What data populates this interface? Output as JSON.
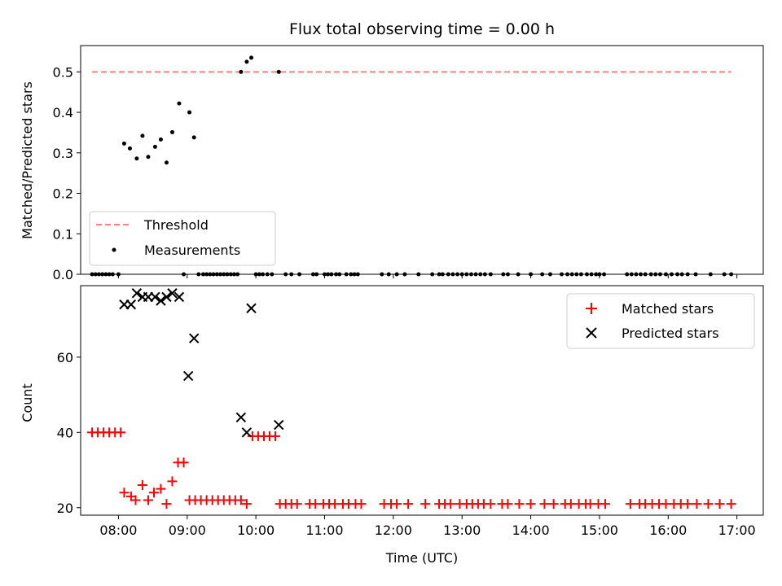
{
  "chart_data": [
    {
      "type": "scatter",
      "title": "Flux total observing time = 0.00 h",
      "xlabel": "",
      "ylabel": "Matched/Predicted stars",
      "xlim": [
        "07:27",
        "17:23"
      ],
      "ylim": [
        0,
        0.565
      ],
      "yticks": [
        0.0,
        0.1,
        0.2,
        0.3,
        0.4,
        0.5
      ],
      "grid": false,
      "legend": "lower-left",
      "threshold": {
        "name": "Threshold",
        "value": 0.5,
        "x": [
          "07:37",
          "16:55"
        ],
        "color": "#ff7f7f"
      },
      "series": [
        {
          "name": "Measurements",
          "color": "#000000",
          "points": [
            [
              "07:37",
              0
            ],
            [
              "07:40",
              0
            ],
            [
              "07:43",
              0
            ],
            [
              "07:46",
              0
            ],
            [
              "07:49",
              0
            ],
            [
              "07:52",
              0
            ],
            [
              "07:55",
              0
            ],
            [
              "08:00",
              0
            ],
            [
              "08:05",
              0.323
            ],
            [
              "08:10",
              0.311
            ],
            [
              "08:16",
              0.286
            ],
            [
              "08:21",
              0.342
            ],
            [
              "08:26",
              0.29
            ],
            [
              "08:32",
              0.315
            ],
            [
              "08:37",
              0.333
            ],
            [
              "08:42",
              0.276
            ],
            [
              "08:47",
              0.351
            ],
            [
              "08:53",
              0.422
            ],
            [
              "08:57",
              0
            ],
            [
              "09:02",
              0.4
            ],
            [
              "09:06",
              0.338
            ],
            [
              "09:10",
              0
            ],
            [
              "09:14",
              0
            ],
            [
              "09:17",
              0
            ],
            [
              "09:20",
              0
            ],
            [
              "09:23",
              0
            ],
            [
              "09:26",
              0
            ],
            [
              "09:29",
              0
            ],
            [
              "09:32",
              0
            ],
            [
              "09:35",
              0
            ],
            [
              "09:38",
              0
            ],
            [
              "09:41",
              0
            ],
            [
              "09:44",
              0
            ],
            [
              "09:47",
              0.5
            ],
            [
              "09:52",
              0.525
            ],
            [
              "09:56",
              0.535
            ],
            [
              "10:00",
              0
            ],
            [
              "10:03",
              0
            ],
            [
              "10:06",
              0
            ],
            [
              "10:10",
              0
            ],
            [
              "10:14",
              0
            ],
            [
              "10:20",
              0.5
            ],
            [
              "10:26",
              0
            ],
            [
              "10:31",
              0
            ],
            [
              "10:38",
              0
            ],
            [
              "10:50",
              0
            ],
            [
              "10:53",
              0
            ],
            [
              "11:00",
              0
            ],
            [
              "11:03",
              0
            ],
            [
              "11:06",
              0
            ],
            [
              "11:10",
              0
            ],
            [
              "11:13",
              0
            ],
            [
              "11:19",
              0
            ],
            [
              "11:23",
              0
            ],
            [
              "11:26",
              0
            ],
            [
              "11:29",
              0
            ],
            [
              "11:50",
              0
            ],
            [
              "11:56",
              0
            ],
            [
              "12:03",
              0
            ],
            [
              "12:10",
              0
            ],
            [
              "12:22",
              0
            ],
            [
              "12:34",
              0
            ],
            [
              "12:40",
              0
            ],
            [
              "12:43",
              0
            ],
            [
              "12:48",
              0
            ],
            [
              "12:52",
              0
            ],
            [
              "12:56",
              0
            ],
            [
              "13:00",
              0
            ],
            [
              "13:04",
              0
            ],
            [
              "13:08",
              0
            ],
            [
              "13:12",
              0
            ],
            [
              "13:16",
              0
            ],
            [
              "13:20",
              0
            ],
            [
              "13:25",
              0
            ],
            [
              "13:36",
              0
            ],
            [
              "13:40",
              0
            ],
            [
              "13:49",
              0
            ],
            [
              "14:00",
              0
            ],
            [
              "14:10",
              0
            ],
            [
              "14:17",
              0
            ],
            [
              "14:27",
              0
            ],
            [
              "14:32",
              0
            ],
            [
              "14:36",
              0
            ],
            [
              "14:40",
              0
            ],
            [
              "14:44",
              0
            ],
            [
              "14:49",
              0
            ],
            [
              "14:53",
              0
            ],
            [
              "14:57",
              0
            ],
            [
              "15:00",
              0
            ],
            [
              "15:04",
              0
            ],
            [
              "15:24",
              0
            ],
            [
              "15:28",
              0
            ],
            [
              "15:32",
              0
            ],
            [
              "15:36",
              0
            ],
            [
              "15:40",
              0
            ],
            [
              "15:45",
              0
            ],
            [
              "15:49",
              0
            ],
            [
              "15:53",
              0
            ],
            [
              "15:58",
              0
            ],
            [
              "16:03",
              0
            ],
            [
              "16:08",
              0
            ],
            [
              "16:12",
              0
            ],
            [
              "16:17",
              0
            ],
            [
              "16:24",
              0
            ],
            [
              "16:37",
              0
            ],
            [
              "16:49",
              0
            ],
            [
              "16:55",
              0
            ]
          ]
        }
      ]
    },
    {
      "type": "scatter",
      "title": "",
      "xlabel": "Time (UTC)",
      "ylabel": "Count",
      "xlim": [
        "07:27",
        "17:23"
      ],
      "ylim": [
        18,
        79
      ],
      "yticks": [
        20,
        40,
        60
      ],
      "xticks": [
        "08:00",
        "09:00",
        "10:00",
        "11:00",
        "12:00",
        "13:00",
        "14:00",
        "15:00",
        "16:00",
        "17:00"
      ],
      "grid": false,
      "legend": "upper-right",
      "series": [
        {
          "name": "Matched stars",
          "marker": "plus",
          "color": "#ff0000",
          "points": [
            [
              "07:37",
              40
            ],
            [
              "07:42",
              40
            ],
            [
              "07:47",
              40
            ],
            [
              "07:52",
              40
            ],
            [
              "07:57",
              40
            ],
            [
              "08:02",
              40
            ],
            [
              "08:05",
              24
            ],
            [
              "08:11",
              23
            ],
            [
              "08:15",
              22
            ],
            [
              "08:21",
              26
            ],
            [
              "08:26",
              22
            ],
            [
              "08:31",
              24
            ],
            [
              "08:37",
              25
            ],
            [
              "08:42",
              21
            ],
            [
              "08:47",
              27
            ],
            [
              "08:52",
              32
            ],
            [
              "08:57",
              32
            ],
            [
              "09:02",
              22
            ],
            [
              "09:07",
              22
            ],
            [
              "09:12",
              22
            ],
            [
              "09:17",
              22
            ],
            [
              "09:22",
              22
            ],
            [
              "09:27",
              22
            ],
            [
              "09:32",
              22
            ],
            [
              "09:37",
              22
            ],
            [
              "09:42",
              22
            ],
            [
              "09:47",
              22
            ],
            [
              "09:52",
              21
            ],
            [
              "09:57",
              39
            ],
            [
              "10:02",
              39
            ],
            [
              "10:07",
              39
            ],
            [
              "10:12",
              39
            ],
            [
              "10:17",
              39
            ],
            [
              "10:21",
              21
            ],
            [
              "10:26",
              21
            ],
            [
              "10:31",
              21
            ],
            [
              "10:36",
              21
            ],
            [
              "10:47",
              21
            ],
            [
              "10:52",
              21
            ],
            [
              "10:59",
              21
            ],
            [
              "11:04",
              21
            ],
            [
              "11:09",
              21
            ],
            [
              "11:16",
              21
            ],
            [
              "11:21",
              21
            ],
            [
              "11:27",
              21
            ],
            [
              "11:32",
              21
            ],
            [
              "11:52",
              21
            ],
            [
              "11:58",
              21
            ],
            [
              "12:03",
              21
            ],
            [
              "12:13",
              21
            ],
            [
              "12:28",
              21
            ],
            [
              "12:40",
              21
            ],
            [
              "12:45",
              21
            ],
            [
              "12:50",
              21
            ],
            [
              "12:58",
              21
            ],
            [
              "13:04",
              21
            ],
            [
              "13:09",
              21
            ],
            [
              "13:14",
              21
            ],
            [
              "13:19",
              21
            ],
            [
              "13:25",
              21
            ],
            [
              "13:35",
              21
            ],
            [
              "13:40",
              21
            ],
            [
              "13:50",
              21
            ],
            [
              "14:00",
              21
            ],
            [
              "14:12",
              21
            ],
            [
              "14:20",
              21
            ],
            [
              "14:30",
              21
            ],
            [
              "14:35",
              21
            ],
            [
              "14:42",
              21
            ],
            [
              "14:48",
              21
            ],
            [
              "14:52",
              21
            ],
            [
              "14:59",
              21
            ],
            [
              "15:05",
              21
            ],
            [
              "15:27",
              21
            ],
            [
              "15:35",
              21
            ],
            [
              "15:40",
              21
            ],
            [
              "15:46",
              21
            ],
            [
              "15:52",
              21
            ],
            [
              "15:58",
              21
            ],
            [
              "16:05",
              21
            ],
            [
              "16:11",
              21
            ],
            [
              "16:17",
              21
            ],
            [
              "16:25",
              21
            ],
            [
              "16:35",
              21
            ],
            [
              "16:45",
              21
            ],
            [
              "16:55",
              21
            ]
          ]
        },
        {
          "name": "Predicted stars",
          "marker": "x",
          "color": "#000000",
          "points": [
            [
              "08:05",
              74
            ],
            [
              "08:11",
              74
            ],
            [
              "08:16",
              77
            ],
            [
              "08:21",
              76
            ],
            [
              "08:26",
              76
            ],
            [
              "08:32",
              76
            ],
            [
              "08:37",
              75
            ],
            [
              "08:42",
              76
            ],
            [
              "08:47",
              77
            ],
            [
              "08:53",
              76
            ],
            [
              "09:01",
              55
            ],
            [
              "09:06",
              65
            ],
            [
              "09:47",
              44
            ],
            [
              "09:52",
              40
            ],
            [
              "09:56",
              73
            ],
            [
              "10:20",
              42
            ]
          ]
        }
      ]
    }
  ]
}
